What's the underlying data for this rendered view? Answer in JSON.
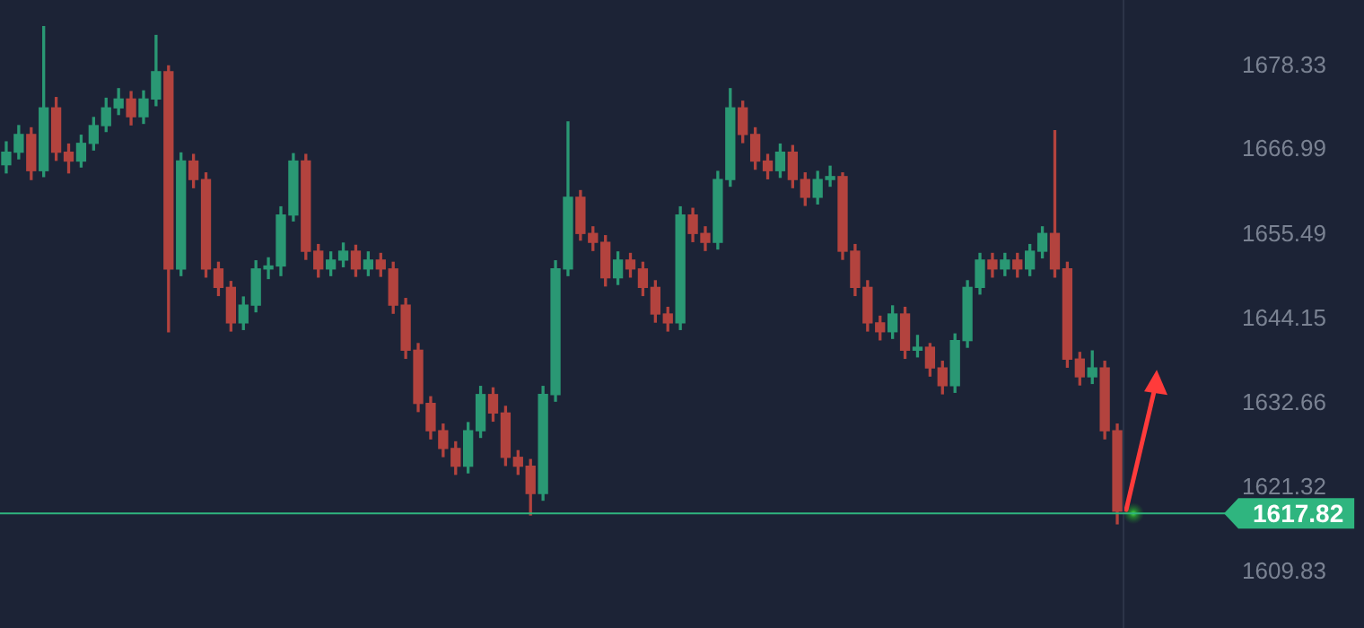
{
  "chart_data": {
    "type": "candlestick",
    "categories": [
      null,
      null,
      null,
      null,
      null,
      null,
      null,
      null,
      null,
      null,
      null,
      null,
      null,
      null,
      null,
      null,
      null,
      null,
      null,
      null,
      null,
      null,
      null,
      null,
      null,
      null,
      null,
      null,
      null,
      null,
      null,
      null,
      null,
      null,
      null,
      null,
      null,
      null,
      null,
      null,
      null,
      null,
      null,
      null,
      null,
      null,
      null,
      null,
      null,
      null,
      null,
      null,
      null,
      null,
      null,
      null,
      null,
      null,
      null,
      null,
      null,
      null,
      null,
      null,
      null,
      null,
      null,
      null,
      null,
      null,
      null,
      null,
      null,
      null,
      null,
      null,
      null,
      null,
      null,
      null,
      null,
      null,
      null,
      null,
      null,
      null,
      null,
      null,
      null,
      null
    ],
    "ohlc": [
      [
        1665.0,
        1668.1,
        1663.9,
        1666.7
      ],
      [
        1666.7,
        1670.3,
        1665.8,
        1669.1
      ],
      [
        1669.1,
        1670.0,
        1663.0,
        1664.2
      ],
      [
        1664.2,
        1683.7,
        1663.4,
        1672.7
      ],
      [
        1672.7,
        1674.1,
        1665.6,
        1666.7
      ],
      [
        1666.7,
        1667.8,
        1663.9,
        1665.5
      ],
      [
        1665.5,
        1669.0,
        1664.7,
        1667.9
      ],
      [
        1667.9,
        1671.4,
        1667.0,
        1670.3
      ],
      [
        1670.3,
        1674.0,
        1669.5,
        1672.7
      ],
      [
        1672.7,
        1675.3,
        1671.8,
        1673.9
      ],
      [
        1673.9,
        1674.9,
        1670.4,
        1671.5
      ],
      [
        1671.5,
        1675.0,
        1670.6,
        1673.9
      ],
      [
        1673.9,
        1682.5,
        1673.0,
        1677.6
      ],
      [
        1677.6,
        1678.4,
        1642.4,
        1650.9
      ],
      [
        1650.9,
        1666.6,
        1650.0,
        1665.5
      ],
      [
        1665.5,
        1666.4,
        1661.9,
        1663.0
      ],
      [
        1663.0,
        1663.9,
        1649.8,
        1650.9
      ],
      [
        1650.9,
        1651.8,
        1647.3,
        1648.4
      ],
      [
        1648.4,
        1649.2,
        1642.5,
        1643.6
      ],
      [
        1643.6,
        1647.1,
        1642.7,
        1646.0
      ],
      [
        1646.0,
        1652.0,
        1645.1,
        1650.9
      ],
      [
        1650.9,
        1652.4,
        1649.6,
        1651.3
      ],
      [
        1651.3,
        1659.3,
        1650.0,
        1658.2
      ],
      [
        1658.2,
        1666.5,
        1657.4,
        1665.5
      ],
      [
        1665.5,
        1666.4,
        1652.2,
        1653.3
      ],
      [
        1653.3,
        1654.2,
        1649.8,
        1650.9
      ],
      [
        1650.9,
        1653.2,
        1650.0,
        1652.1
      ],
      [
        1652.1,
        1654.4,
        1651.2,
        1653.3
      ],
      [
        1653.3,
        1654.1,
        1649.9,
        1650.9
      ],
      [
        1650.9,
        1653.2,
        1650.0,
        1652.1
      ],
      [
        1652.1,
        1653.0,
        1649.9,
        1650.9
      ],
      [
        1650.9,
        1651.8,
        1644.9,
        1646.0
      ],
      [
        1646.0,
        1646.9,
        1638.8,
        1639.9
      ],
      [
        1639.9,
        1640.8,
        1631.6,
        1632.7
      ],
      [
        1632.7,
        1633.6,
        1627.9,
        1629.0
      ],
      [
        1629.0,
        1629.9,
        1625.5,
        1626.6
      ],
      [
        1626.6,
        1627.5,
        1623.1,
        1624.2
      ],
      [
        1624.2,
        1630.1,
        1623.3,
        1629.0
      ],
      [
        1629.0,
        1635.0,
        1628.1,
        1633.9
      ],
      [
        1633.9,
        1634.8,
        1630.3,
        1631.4
      ],
      [
        1631.4,
        1632.3,
        1624.3,
        1625.4
      ],
      [
        1625.4,
        1626.3,
        1623.1,
        1624.2
      ],
      [
        1624.2,
        1625.1,
        1617.6,
        1620.5
      ],
      [
        1620.5,
        1635.0,
        1619.6,
        1633.9
      ],
      [
        1633.9,
        1652.0,
        1633.0,
        1650.9
      ],
      [
        1650.9,
        1670.8,
        1650.0,
        1660.6
      ],
      [
        1660.6,
        1661.5,
        1654.8,
        1655.7
      ],
      [
        1655.7,
        1656.6,
        1653.4,
        1654.5
      ],
      [
        1654.5,
        1655.4,
        1648.6,
        1649.7
      ],
      [
        1649.7,
        1653.2,
        1648.8,
        1652.1
      ],
      [
        1652.1,
        1653.0,
        1649.8,
        1650.9
      ],
      [
        1650.9,
        1651.8,
        1647.3,
        1648.4
      ],
      [
        1648.4,
        1649.3,
        1643.7,
        1644.8
      ],
      [
        1644.8,
        1645.7,
        1642.5,
        1643.6
      ],
      [
        1643.6,
        1659.3,
        1642.7,
        1658.2
      ],
      [
        1658.2,
        1659.1,
        1654.6,
        1655.7
      ],
      [
        1655.7,
        1656.6,
        1653.4,
        1654.5
      ],
      [
        1654.5,
        1664.1,
        1653.6,
        1663.0
      ],
      [
        1663.0,
        1675.3,
        1662.1,
        1672.7
      ],
      [
        1672.7,
        1673.6,
        1668.0,
        1669.1
      ],
      [
        1669.1,
        1670.0,
        1664.4,
        1665.5
      ],
      [
        1665.5,
        1666.4,
        1663.1,
        1664.2
      ],
      [
        1664.2,
        1667.8,
        1663.3,
        1666.7
      ],
      [
        1666.7,
        1667.6,
        1661.9,
        1663.0
      ],
      [
        1663.0,
        1663.9,
        1659.5,
        1660.6
      ],
      [
        1660.6,
        1664.1,
        1659.7,
        1663.0
      ],
      [
        1663.0,
        1664.8,
        1662.1,
        1663.4
      ],
      [
        1663.4,
        1663.9,
        1652.2,
        1653.3
      ],
      [
        1653.3,
        1654.2,
        1647.3,
        1648.4
      ],
      [
        1648.4,
        1649.3,
        1642.5,
        1643.6
      ],
      [
        1643.6,
        1644.5,
        1641.3,
        1642.4
      ],
      [
        1642.4,
        1645.9,
        1641.5,
        1644.8
      ],
      [
        1644.8,
        1645.7,
        1638.8,
        1639.9
      ],
      [
        1639.9,
        1641.9,
        1639.0,
        1640.3
      ],
      [
        1640.3,
        1640.8,
        1636.4,
        1637.5
      ],
      [
        1637.5,
        1638.4,
        1634.0,
        1635.1
      ],
      [
        1635.1,
        1642.1,
        1634.2,
        1641.2
      ],
      [
        1641.2,
        1649.3,
        1640.3,
        1648.4
      ],
      [
        1648.4,
        1653.0,
        1647.5,
        1652.1
      ],
      [
        1652.1,
        1653.0,
        1649.8,
        1650.9
      ],
      [
        1650.9,
        1653.0,
        1650.0,
        1652.1
      ],
      [
        1652.1,
        1653.0,
        1649.8,
        1650.9
      ],
      [
        1650.9,
        1654.2,
        1650.0,
        1653.3
      ],
      [
        1653.3,
        1656.6,
        1652.4,
        1655.7
      ],
      [
        1655.7,
        1669.6,
        1649.8,
        1650.9
      ],
      [
        1650.9,
        1651.8,
        1637.6,
        1638.7
      ],
      [
        1638.7,
        1639.6,
        1635.2,
        1636.3
      ],
      [
        1636.3,
        1639.8,
        1635.4,
        1637.5
      ],
      [
        1637.5,
        1638.4,
        1627.9,
        1629.0
      ],
      [
        1629.0,
        1629.9,
        1616.4,
        1618.1
      ]
    ],
    "ylim": [
      1602.3,
      1687.3
    ],
    "yticks": [
      1609.83,
      1621.32,
      1632.66,
      1644.15,
      1655.49,
      1666.99,
      1678.33
    ],
    "ref_lines": [
      {
        "axis": "y",
        "value": 1617.82,
        "label": "1617.82",
        "color": "#2fb57f"
      }
    ],
    "grid": false,
    "tick_labels": "y"
  }
}
